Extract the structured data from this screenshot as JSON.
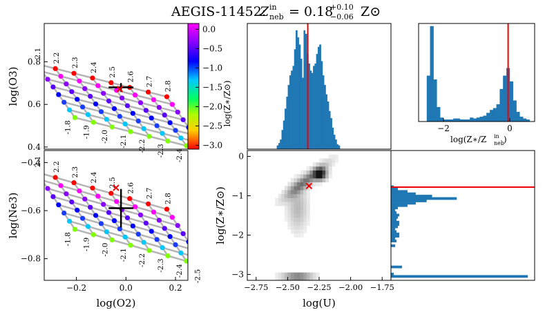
{
  "title": "AEGIS-11452:  Zᵢₙ = 0.18 (+0.10/−0.06) Z⊙",
  "title_parts": {
    "object": "AEGIS-11452:",
    "z_label": "Z",
    "z_sup": "in",
    "z_sub": "neb",
    "eq": "= 0.18",
    "plus": "+0.10",
    "minus": "−0.06",
    "unit": "Z⊙"
  },
  "chart_data": [
    {
      "id": "o3-vs-o2-grid",
      "type": "scatter",
      "xlabel": "",
      "ylabel": "log(O3)",
      "xlim": [
        -0.33,
        0.25
      ],
      "ylim": [
        0.39,
        0.98
      ],
      "yticks": [
        0.4,
        0.6,
        0.8
      ],
      "ytick_labels": [
        "0.4",
        "0.6",
        "0.8"
      ],
      "u_labels": [
        "2.1",
        "2.2",
        "2.3",
        "2.4",
        "2.5",
        "2.6",
        "2.7",
        "2.8"
      ],
      "z_labels": [
        "-1.8",
        "-1.9",
        "-2.0",
        "-2.1",
        "-2.2",
        "-2.3",
        "-2.4",
        "-2.5"
      ],
      "measurement": {
        "x": -0.02,
        "y": 0.68,
        "xerr": 0.05,
        "yerr": 0.02
      },
      "best_fit": {
        "x": -0.025,
        "y": 0.672
      }
    },
    {
      "id": "ne3-vs-o2-grid",
      "type": "scatter",
      "xlabel": "log(O2)",
      "ylabel": "log(Ne3)",
      "xlim": [
        -0.33,
        0.25
      ],
      "ylim": [
        -0.89,
        -0.35
      ],
      "xticks": [
        -0.2,
        0.0,
        0.2
      ],
      "xtick_labels": [
        "−0.2",
        "0.0",
        "0.2"
      ],
      "yticks": [
        -0.8,
        -0.6,
        -0.4
      ],
      "ytick_labels": [
        "−0.8",
        "−0.6",
        "−0.4"
      ],
      "u_labels": [
        "2.1",
        "2.2",
        "2.3",
        "2.4",
        "2.5",
        "2.6",
        "2.7",
        "2.8"
      ],
      "z_labels": [
        "-1.8",
        "-1.9",
        "-2.0",
        "-2.1",
        "-2.2",
        "-2.3",
        "-2.4",
        "-2.5"
      ],
      "measurement": {
        "x": -0.02,
        "y": -0.59,
        "xerr": 0.05,
        "yerr": 0.08
      },
      "best_fit": {
        "x": -0.04,
        "y": -0.505
      }
    },
    {
      "id": "colorbar",
      "type": "heatmap",
      "label": "log(Z∗/Z⊙)",
      "range": [
        -3.1,
        0.15
      ],
      "ticks": [
        0.0,
        -0.5,
        -1.0,
        -1.5,
        -2.0,
        -2.5,
        -3.0
      ],
      "tick_labels": [
        "0.0",
        "−0.5",
        "−1.0",
        "−1.5",
        "−2.0",
        "−2.5",
        "−3.0"
      ],
      "color": "#e32"
    },
    {
      "id": "log-u-histogram",
      "type": "bar",
      "xlim": [
        -2.82,
        -1.68
      ],
      "bin_start": -2.585,
      "bin_width": 0.0125,
      "counts": [
        3,
        5,
        8,
        16,
        24,
        34,
        44,
        54,
        62,
        66,
        70,
        84,
        100,
        94,
        88,
        76,
        60,
        100,
        97,
        80,
        72,
        66,
        64,
        70,
        72,
        80,
        86,
        88,
        74,
        62,
        54,
        46,
        40,
        32,
        26,
        18,
        12,
        8,
        4,
        3
      ],
      "median_line": -2.34,
      "line_color": "#e00"
    },
    {
      "id": "z-ratio-histogram",
      "type": "bar",
      "xlabel": "log(Z∗/Zᵢₙₙₑᵦ)",
      "xlabel_parts": {
        "main": "log(Z∗/Z",
        "sup": "in",
        "sub": "neb",
        "close": ")"
      },
      "xlim": [
        -2.75,
        0.75
      ],
      "xticks": [
        -2,
        0
      ],
      "xtick_labels": [
        "−2",
        "0"
      ],
      "bin_start": -2.5,
      "bin_width": 0.1,
      "counts": [
        48,
        100,
        44,
        15,
        4,
        2,
        2,
        2,
        3,
        3,
        2,
        2,
        2,
        4,
        3,
        4,
        5,
        6,
        9,
        12,
        14,
        18,
        34,
        48,
        56,
        42,
        22,
        10,
        5,
        3,
        2
      ],
      "zero_line": -0.05,
      "line_color": "#e00"
    },
    {
      "id": "z-vs-u-density",
      "type": "heatmap",
      "xlabel": "log(U)",
      "ylabel": "log(Z∗/Z⊙)",
      "xlim": [
        -2.82,
        -1.68
      ],
      "ylim": [
        -3.15,
        0.15
      ],
      "xticks": [
        -2.75,
        -2.5,
        -2.25,
        -2.0,
        -1.75
      ],
      "xtick_labels": [
        "−2.75",
        "−2.50",
        "−2.25",
        "−2.00",
        "−1.75"
      ],
      "yticks": [
        0,
        -1,
        -2,
        -3
      ],
      "ytick_labels": [
        "0",
        "−1",
        "−2",
        "−3"
      ],
      "best_fit": {
        "x": -2.33,
        "y": -0.75
      },
      "marker_color": "#e00"
    },
    {
      "id": "z-histogram",
      "type": "bar",
      "ylim": [
        -3.15,
        0.15
      ],
      "bin_start": -3.08,
      "bin_width": 0.06,
      "counts": [
        100,
        2,
        0,
        0,
        8,
        0,
        0,
        0,
        0,
        0,
        0,
        0,
        0,
        3,
        0,
        4,
        3,
        6,
        6,
        4,
        3,
        5,
        6,
        6,
        4,
        5,
        6,
        4,
        3,
        5,
        12,
        18,
        26,
        48,
        30,
        18,
        12,
        5,
        2
      ],
      "median_line": -0.78,
      "line_color": "#e00"
    }
  ]
}
